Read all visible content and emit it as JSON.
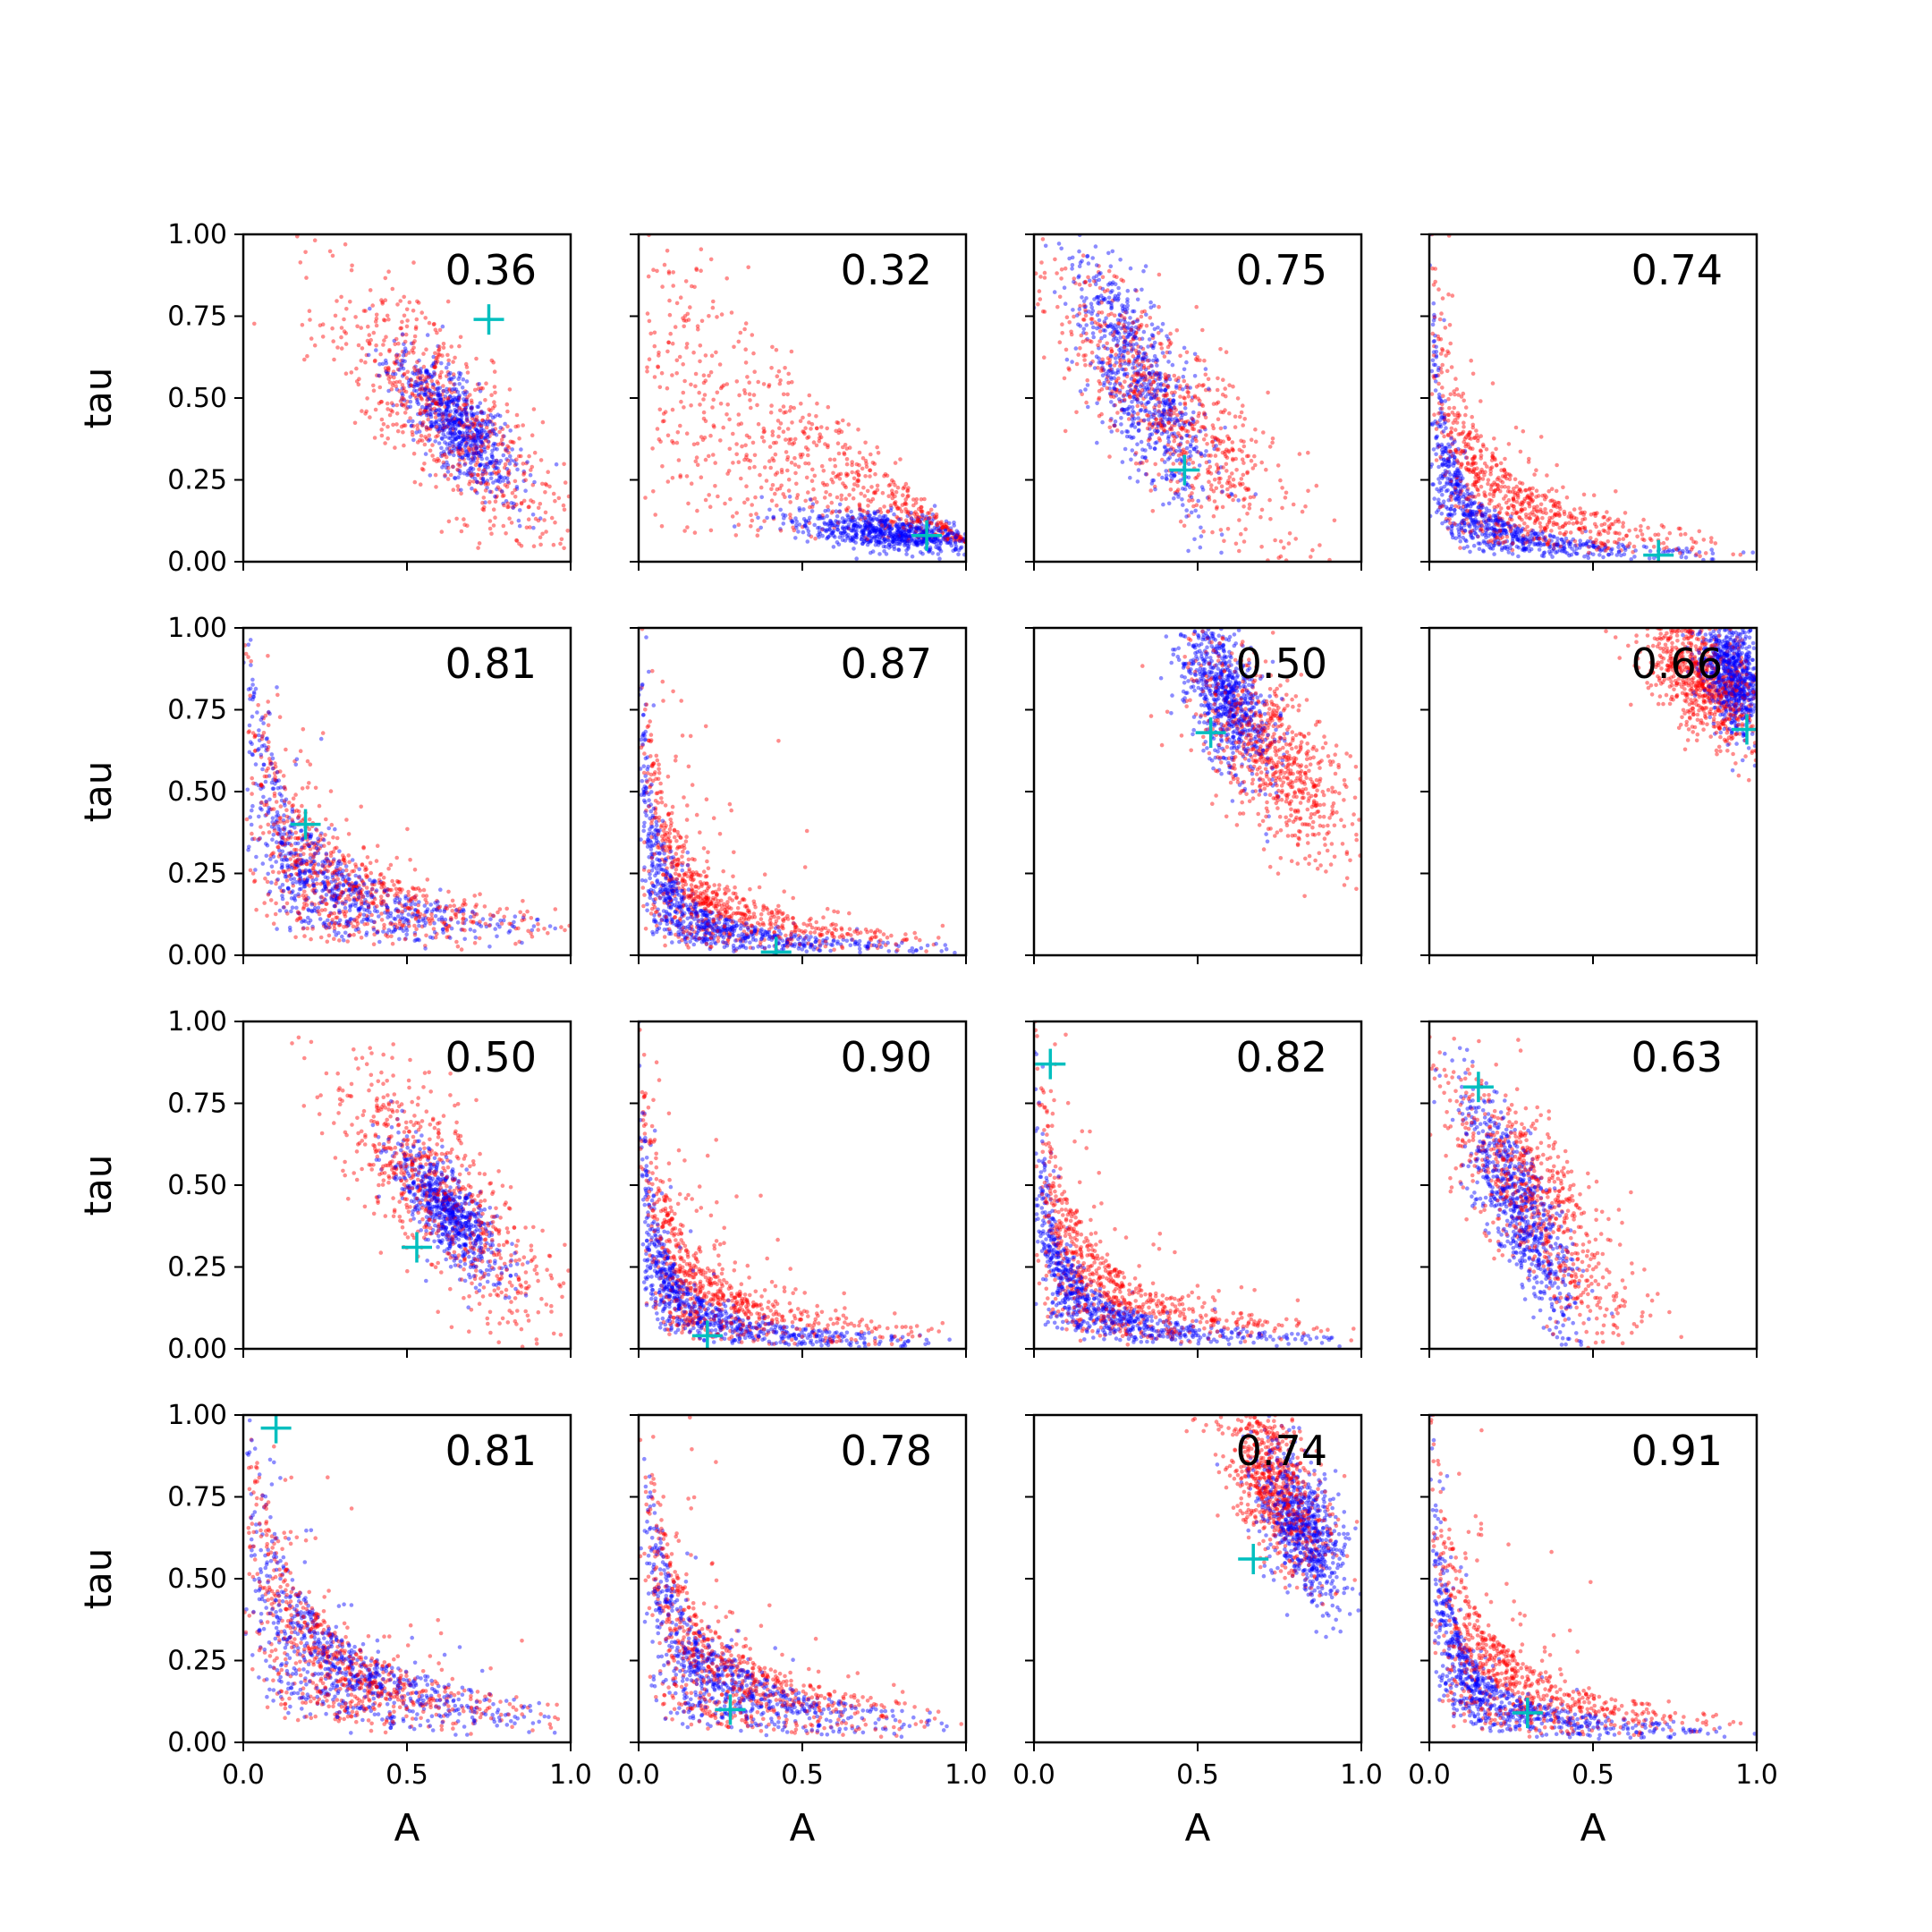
{
  "chart_data": {
    "type": "scatter",
    "layout": "4x4 grid of scatter panels, shared axes",
    "xlabel": "A",
    "ylabel": "tau",
    "xlim": [
      0,
      1
    ],
    "ylim": [
      0,
      1
    ],
    "x_ticks": [
      "0.0",
      "0.5",
      "1.0"
    ],
    "y_ticks": [
      "0.00",
      "0.25",
      "0.50",
      "0.75",
      "1.00"
    ],
    "colors": {
      "series_red": "#ff0000",
      "series_blue": "#0000ff",
      "marker": "#00bfbf"
    },
    "grid": false,
    "panels": [
      {
        "label": "0.36",
        "marker": [
          0.75,
          0.74
        ],
        "red": {
          "shape": "band",
          "center": [
            0.62,
            0.45
          ],
          "sx": 0.18,
          "sy": 0.2,
          "corr": -0.78
        },
        "blue": {
          "shape": "band",
          "center": [
            0.65,
            0.42
          ],
          "sx": 0.09,
          "sy": 0.1,
          "corr": -0.7
        }
      },
      {
        "label": "0.32",
        "marker": [
          0.88,
          0.08
        ],
        "red": {
          "shape": "decay",
          "xmin": 0.02,
          "xmax": 1.0,
          "scale": 0.38,
          "noise": 0.2,
          "floor": 0.06
        },
        "blue": {
          "shape": "band",
          "center": [
            0.78,
            0.09
          ],
          "sx": 0.15,
          "sy": 0.03,
          "corr": -0.5
        }
      },
      {
        "label": "0.75",
        "marker": [
          0.46,
          0.28
        ],
        "red": {
          "shape": "band",
          "center": [
            0.42,
            0.45
          ],
          "sx": 0.2,
          "sy": 0.22,
          "corr": -0.8
        },
        "blue": {
          "shape": "band",
          "center": [
            0.33,
            0.55
          ],
          "sx": 0.11,
          "sy": 0.2,
          "corr": -0.75
        }
      },
      {
        "label": "0.74",
        "marker": [
          0.7,
          0.02
        ],
        "red": {
          "shape": "hyper",
          "k": 0.08,
          "noise": 0.45
        },
        "blue": {
          "shape": "hyper",
          "k": 0.03,
          "noise": 0.35
        }
      },
      {
        "label": "0.81",
        "marker": [
          0.19,
          0.4
        ],
        "red": {
          "shape": "hyper",
          "k": 0.12,
          "noise": 0.45
        },
        "blue": {
          "shape": "hyper",
          "k": 0.1,
          "noise": 0.3
        }
      },
      {
        "label": "0.87",
        "marker": [
          0.42,
          0.01
        ],
        "red": {
          "shape": "hyper",
          "k": 0.06,
          "noise": 0.6
        },
        "blue": {
          "shape": "hyper",
          "k": 0.03,
          "noise": 0.35
        }
      },
      {
        "label": "0.50",
        "marker": [
          0.54,
          0.68
        ],
        "red": {
          "shape": "band",
          "center": [
            0.72,
            0.62
          ],
          "sx": 0.13,
          "sy": 0.17,
          "corr": -0.7
        },
        "blue": {
          "shape": "band",
          "center": [
            0.58,
            0.8
          ],
          "sx": 0.07,
          "sy": 0.13,
          "corr": -0.6
        }
      },
      {
        "label": "0.66",
        "marker": [
          0.97,
          0.69
        ],
        "red": {
          "shape": "band",
          "center": [
            0.84,
            0.84
          ],
          "sx": 0.09,
          "sy": 0.1,
          "corr": -0.5
        },
        "blue": {
          "shape": "band",
          "center": [
            0.93,
            0.85
          ],
          "sx": 0.05,
          "sy": 0.09,
          "corr": -0.4
        }
      },
      {
        "label": "0.50",
        "marker": [
          0.53,
          0.31
        ],
        "red": {
          "shape": "band",
          "center": [
            0.62,
            0.45
          ],
          "sx": 0.18,
          "sy": 0.22,
          "corr": -0.8
        },
        "blue": {
          "shape": "band",
          "center": [
            0.62,
            0.43
          ],
          "sx": 0.08,
          "sy": 0.1,
          "corr": -0.75
        }
      },
      {
        "label": "0.90",
        "marker": [
          0.21,
          0.04
        ],
        "red": {
          "shape": "hyper",
          "k": 0.06,
          "noise": 0.6
        },
        "blue": {
          "shape": "hyper",
          "k": 0.03,
          "noise": 0.35
        }
      },
      {
        "label": "0.82",
        "marker": [
          0.05,
          0.87
        ],
        "red": {
          "shape": "hyper",
          "k": 0.07,
          "noise": 0.55
        },
        "blue": {
          "shape": "hyper",
          "k": 0.035,
          "noise": 0.35
        }
      },
      {
        "label": "0.63",
        "marker": [
          0.15,
          0.8
        ],
        "red": {
          "shape": "band",
          "center": [
            0.33,
            0.45
          ],
          "sx": 0.15,
          "sy": 0.22,
          "corr": -0.8
        },
        "blue": {
          "shape": "band",
          "center": [
            0.28,
            0.42
          ],
          "sx": 0.09,
          "sy": 0.18,
          "corr": -0.8
        }
      },
      {
        "label": "0.81",
        "marker": [
          0.1,
          0.96
        ],
        "red": {
          "shape": "hyper",
          "k": 0.12,
          "noise": 0.45
        },
        "blue": {
          "shape": "hyper",
          "k": 0.12,
          "noise": 0.35
        }
      },
      {
        "label": "0.78",
        "marker": [
          0.28,
          0.1
        ],
        "red": {
          "shape": "hyper",
          "k": 0.1,
          "noise": 0.5
        },
        "blue": {
          "shape": "hyper",
          "k": 0.08,
          "noise": 0.35
        }
      },
      {
        "label": "0.74",
        "marker": [
          0.67,
          0.56
        ],
        "red": {
          "shape": "band",
          "center": [
            0.74,
            0.78
          ],
          "sx": 0.08,
          "sy": 0.14,
          "corr": -0.6
        },
        "blue": {
          "shape": "band",
          "center": [
            0.82,
            0.65
          ],
          "sx": 0.07,
          "sy": 0.12,
          "corr": -0.55
        }
      },
      {
        "label": "0.91",
        "marker": [
          0.3,
          0.09
        ],
        "red": {
          "shape": "hyper",
          "k": 0.08,
          "noise": 0.55
        },
        "blue": {
          "shape": "hyper",
          "k": 0.04,
          "noise": 0.35
        }
      }
    ]
  }
}
